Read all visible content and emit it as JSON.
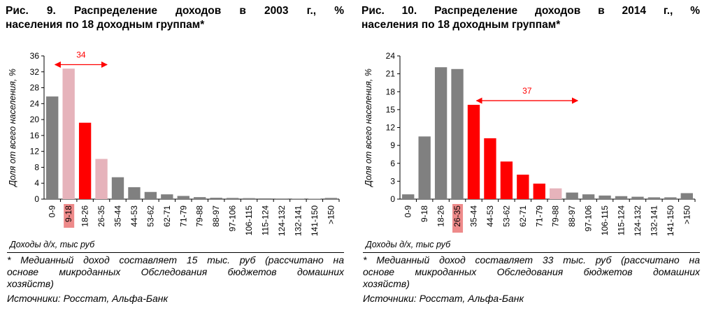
{
  "colors": {
    "gray": "#808080",
    "red": "#ff0000",
    "pink": "#e6b3bb",
    "axis": "#000000",
    "annotation": "#ff0000",
    "highlight_bg": "#ee8a8a"
  },
  "charts": [
    {
      "title_lines": [
        "Рис. 9. Распределение доходов в 2003 г., %",
        "населения по 18 доходным группам*"
      ],
      "footnote_lines": [
        "* Медианный доход составляет 15 тыс. руб (рассчитано на",
        "основе микроданных Обследования бюджетов домашних",
        "хозяйств)"
      ],
      "sources": "Источники: Росстат, Альфа-Банк"
    },
    {
      "title_lines": [
        "Рис. 10. Распределение доходов в 2014 г., %",
        "населения по 18 доходным группам*"
      ],
      "footnote_lines": [
        "* Медианный доход составляет 33 тыс. руб (рассчитано на",
        "основе микроданных Обследования бюджетов домашних",
        "хозяйств)"
      ],
      "sources": "Источники: Росстат, Альфа-Банк"
    }
  ],
  "chart_data": [
    {
      "type": "bar",
      "title": "Рис. 9. Распределение доходов в 2003 г., % населения по 18 доходным группам*",
      "xlabel": "Доходы д/х, тыс руб",
      "ylabel": "Доля от всего населения, %",
      "ylim": [
        0,
        36
      ],
      "yticks": [
        0,
        4,
        8,
        12,
        16,
        20,
        24,
        28,
        32,
        36
      ],
      "grid": false,
      "legend": "none",
      "categories": [
        "0-9",
        "9-18",
        "18-26",
        "26-35",
        "35-44",
        "44-53",
        "53-62",
        "62-71",
        "71-79",
        "79-88",
        "88-97",
        "97-106",
        "106-115",
        "115-124",
        "124-132",
        "132-141",
        "141-150",
        ">150"
      ],
      "values": [
        25.8,
        32.8,
        19.2,
        10.1,
        5.5,
        3.0,
        1.8,
        1.2,
        0.8,
        0.5,
        0.35,
        0.3,
        0.25,
        0.2,
        0.15,
        0.12,
        0.1,
        0.3
      ],
      "bar_colors": [
        "gray",
        "pink",
        "red",
        "pink",
        "gray",
        "gray",
        "gray",
        "gray",
        "gray",
        "gray",
        "gray",
        "gray",
        "gray",
        "gray",
        "gray",
        "gray",
        "gray",
        "gray"
      ],
      "highlight_category": "9-18",
      "annotation": {
        "text": "34",
        "from_category": "0-9",
        "to_category": "26-35",
        "y": 33.8
      }
    },
    {
      "type": "bar",
      "title": "Рис. 10. Распределение доходов в 2014 г., % населения по 18 доходным группам*",
      "xlabel": "Доходы д/х, тыс руб",
      "ylabel": "Доля от всего населения, %",
      "ylim": [
        0,
        24
      ],
      "yticks": [
        0,
        3,
        6,
        9,
        12,
        15,
        18,
        21,
        24
      ],
      "grid": false,
      "legend": "none",
      "categories": [
        "0-9",
        "9-18",
        "18-26",
        "26-35",
        "35-44",
        "44-53",
        "53-62",
        "62-71",
        "71-79",
        "79-88",
        "88-97",
        "97-106",
        "106-115",
        "115-124",
        "124-132",
        "132-141",
        "141-150",
        ">150"
      ],
      "values": [
        0.8,
        10.5,
        22.1,
        21.8,
        15.8,
        10.2,
        6.3,
        4.1,
        2.6,
        1.8,
        1.1,
        0.8,
        0.6,
        0.5,
        0.4,
        0.3,
        0.3,
        1.0
      ],
      "bar_colors": [
        "gray",
        "gray",
        "gray",
        "gray",
        "red",
        "red",
        "red",
        "red",
        "red",
        "pink",
        "gray",
        "gray",
        "gray",
        "gray",
        "gray",
        "gray",
        "gray",
        "gray"
      ],
      "highlight_category": "26-35",
      "annotation": {
        "text": "37",
        "from_category": "35-44",
        "to_category": "88-97",
        "y": 16.5
      }
    }
  ]
}
